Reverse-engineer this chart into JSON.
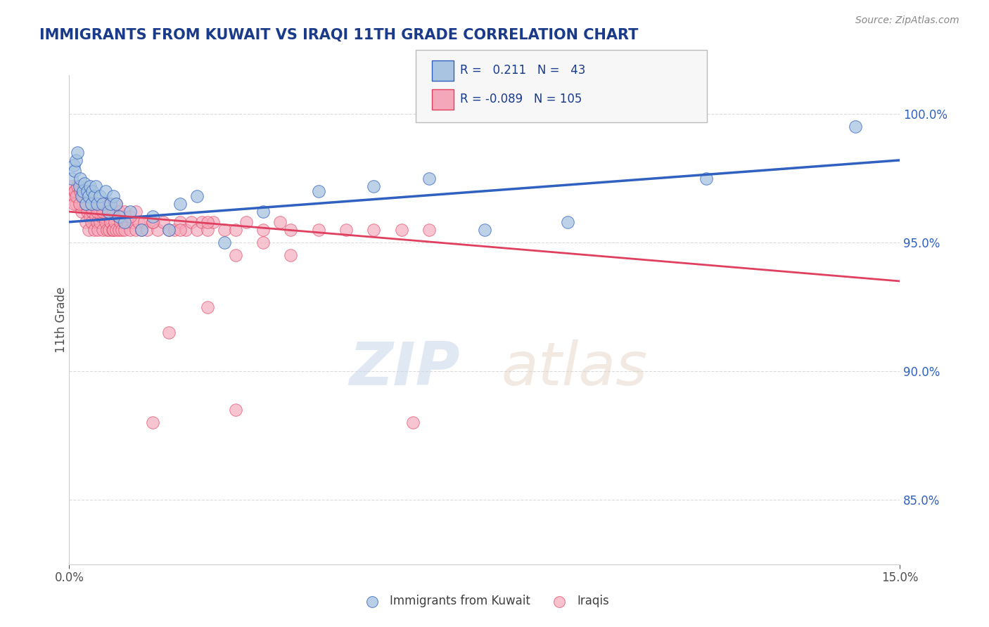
{
  "title": "IMMIGRANTS FROM KUWAIT VS IRAQI 11TH GRADE CORRELATION CHART",
  "source_text": "Source: ZipAtlas.com",
  "ylabel": "11th Grade",
  "xlim": [
    0.0,
    15.0
  ],
  "ylim": [
    82.5,
    101.5
  ],
  "y_ticks_right": [
    85.0,
    90.0,
    95.0,
    100.0
  ],
  "y_tick_labels_right": [
    "85.0%",
    "90.0%",
    "95.0%",
    "100.0%"
  ],
  "legend_label1": "Immigrants from Kuwait",
  "legend_label2": "Iraqis",
  "color_kuwait": "#a8c4e0",
  "color_iraqis": "#f4a7b9",
  "color_trend_kuwait": "#3060c0",
  "color_trend_iraqis": "#e04060",
  "color_dashed": "#a0b8d8",
  "background_color": "#ffffff",
  "grid_color": "#d8d8d8",
  "title_color": "#1a3a8a",
  "source_color": "#888888",
  "kuwait_x": [
    0.05,
    0.08,
    0.1,
    0.12,
    0.15,
    0.18,
    0.2,
    0.22,
    0.25,
    0.28,
    0.3,
    0.32,
    0.35,
    0.38,
    0.4,
    0.42,
    0.45,
    0.48,
    0.5,
    0.55,
    0.6,
    0.65,
    0.7,
    0.75,
    0.8,
    0.85,
    0.9,
    1.0,
    1.1,
    1.3,
    1.5,
    1.8,
    2.0,
    2.3,
    2.8,
    3.5,
    4.5,
    5.5,
    6.5,
    7.5,
    9.0,
    11.5,
    14.2
  ],
  "kuwait_y": [
    97.5,
    98.0,
    97.8,
    98.2,
    98.5,
    97.2,
    97.5,
    96.8,
    97.0,
    97.3,
    96.5,
    97.0,
    96.8,
    97.2,
    96.5,
    97.0,
    96.8,
    97.2,
    96.5,
    96.8,
    96.5,
    97.0,
    96.2,
    96.5,
    96.8,
    96.5,
    96.0,
    95.8,
    96.2,
    95.5,
    96.0,
    95.5,
    96.5,
    96.8,
    95.0,
    96.2,
    97.0,
    97.2,
    97.5,
    95.5,
    95.8,
    97.5,
    99.5
  ],
  "iraqis_x": [
    0.05,
    0.08,
    0.1,
    0.12,
    0.15,
    0.18,
    0.2,
    0.22,
    0.25,
    0.28,
    0.3,
    0.32,
    0.35,
    0.38,
    0.4,
    0.42,
    0.45,
    0.48,
    0.5,
    0.52,
    0.55,
    0.58,
    0.6,
    0.62,
    0.65,
    0.68,
    0.7,
    0.72,
    0.75,
    0.78,
    0.8,
    0.82,
    0.85,
    0.88,
    0.9,
    0.92,
    0.95,
    0.98,
    1.0,
    1.05,
    1.1,
    1.15,
    1.2,
    1.25,
    1.3,
    1.35,
    1.4,
    1.5,
    1.6,
    1.7,
    1.8,
    1.9,
    2.0,
    2.1,
    2.2,
    2.3,
    2.4,
    2.5,
    2.6,
    2.8,
    3.0,
    3.2,
    3.5,
    3.8,
    4.0,
    4.5,
    5.0,
    5.5,
    6.0,
    6.5,
    0.08,
    0.1,
    0.12,
    0.15,
    0.18,
    0.2,
    0.25,
    0.3,
    0.35,
    0.4,
    0.45,
    0.5,
    0.55,
    0.6,
    0.65,
    0.7,
    0.75,
    0.8,
    0.85,
    0.9,
    0.95,
    1.0,
    1.1,
    1.2,
    1.5,
    2.0,
    2.5,
    3.0,
    3.5,
    4.0,
    1.8,
    2.5,
    1.5,
    3.0,
    6.2
  ],
  "iraqis_y": [
    97.2,
    96.8,
    97.0,
    96.5,
    96.8,
    96.5,
    97.0,
    96.2,
    96.5,
    96.8,
    95.8,
    96.2,
    95.5,
    96.0,
    95.8,
    96.2,
    95.5,
    96.0,
    95.8,
    95.5,
    95.8,
    96.0,
    95.5,
    96.0,
    95.8,
    95.5,
    96.0,
    95.5,
    95.8,
    95.5,
    95.5,
    95.8,
    95.5,
    96.0,
    95.5,
    95.8,
    95.5,
    95.8,
    95.5,
    95.8,
    95.5,
    95.8,
    95.5,
    95.8,
    95.5,
    95.8,
    95.5,
    95.8,
    95.5,
    95.8,
    95.5,
    95.5,
    95.8,
    95.5,
    95.8,
    95.5,
    95.8,
    95.5,
    95.8,
    95.5,
    95.5,
    95.8,
    95.5,
    95.8,
    95.5,
    95.5,
    95.5,
    95.5,
    95.5,
    95.5,
    96.5,
    97.0,
    96.8,
    97.2,
    96.5,
    97.0,
    96.8,
    96.5,
    96.8,
    96.5,
    96.5,
    96.2,
    96.5,
    96.2,
    96.5,
    96.2,
    96.5,
    96.2,
    96.5,
    96.2,
    96.0,
    96.2,
    96.0,
    96.2,
    95.8,
    95.5,
    95.8,
    94.5,
    95.0,
    94.5,
    91.5,
    92.5,
    88.0,
    88.5,
    88.0
  ],
  "trend_kuwait_y0": 95.8,
  "trend_kuwait_y1": 98.2,
  "trend_iraqis_y0": 96.2,
  "trend_iraqis_y1": 93.5
}
